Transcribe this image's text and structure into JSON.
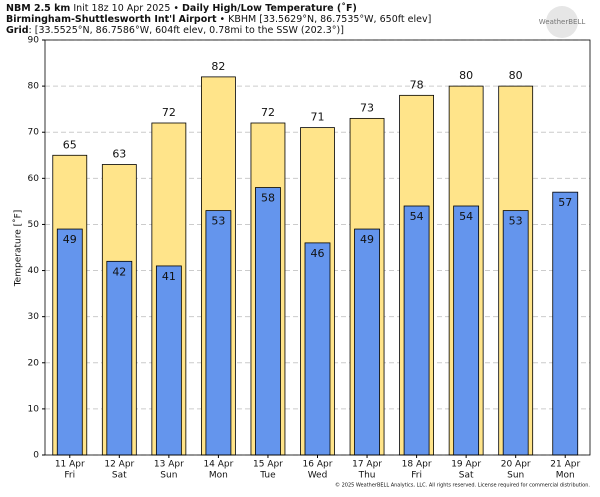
{
  "header": {
    "model": "NBM 2.5 km",
    "init": "Init 18z 10 Apr 2025 •",
    "title": "Daily High/Low Temperature (˚F)",
    "station": "Birmingham-Shuttlesworth Int'l Airport",
    "station_info": "• KBHM [33.5629°N, 86.7535°W, 650ft elev]",
    "grid_label": "Grid",
    "grid_info": ": [33.5525°N, 86.7586°W, 604ft elev, 0.78mi to the SSW (202.3°)]",
    "logo": "WeatherBELL"
  },
  "footer": "© 2025 WeatherBELL Analytics, LLC. All rights reserved. License required for commercial distribution.",
  "chart_data": {
    "type": "bar",
    "y_label": "Temperature [˚F]",
    "categories": [
      "11 Apr",
      "12 Apr",
      "13 Apr",
      "14 Apr",
      "15 Apr",
      "16 Apr",
      "17 Apr",
      "18 Apr",
      "19 Apr",
      "20 Apr",
      "21 Apr"
    ],
    "weekdays": [
      "Fri",
      "Sat",
      "Sun",
      "Mon",
      "Tue",
      "Wed",
      "Thu",
      "Fri",
      "Sat",
      "Sun",
      "Mon"
    ],
    "series": [
      {
        "name": "High",
        "color": "#ffe48a",
        "values": [
          65,
          63,
          72,
          82,
          72,
          71,
          73,
          78,
          80,
          80,
          null
        ]
      },
      {
        "name": "Low",
        "color": "#6495ed",
        "values": [
          49,
          42,
          41,
          53,
          58,
          46,
          49,
          54,
          54,
          53,
          57
        ]
      }
    ],
    "ylim": [
      0,
      90
    ],
    "yticks": [
      0,
      10,
      20,
      30,
      40,
      50,
      60,
      70,
      80,
      90
    ],
    "grid": true
  }
}
